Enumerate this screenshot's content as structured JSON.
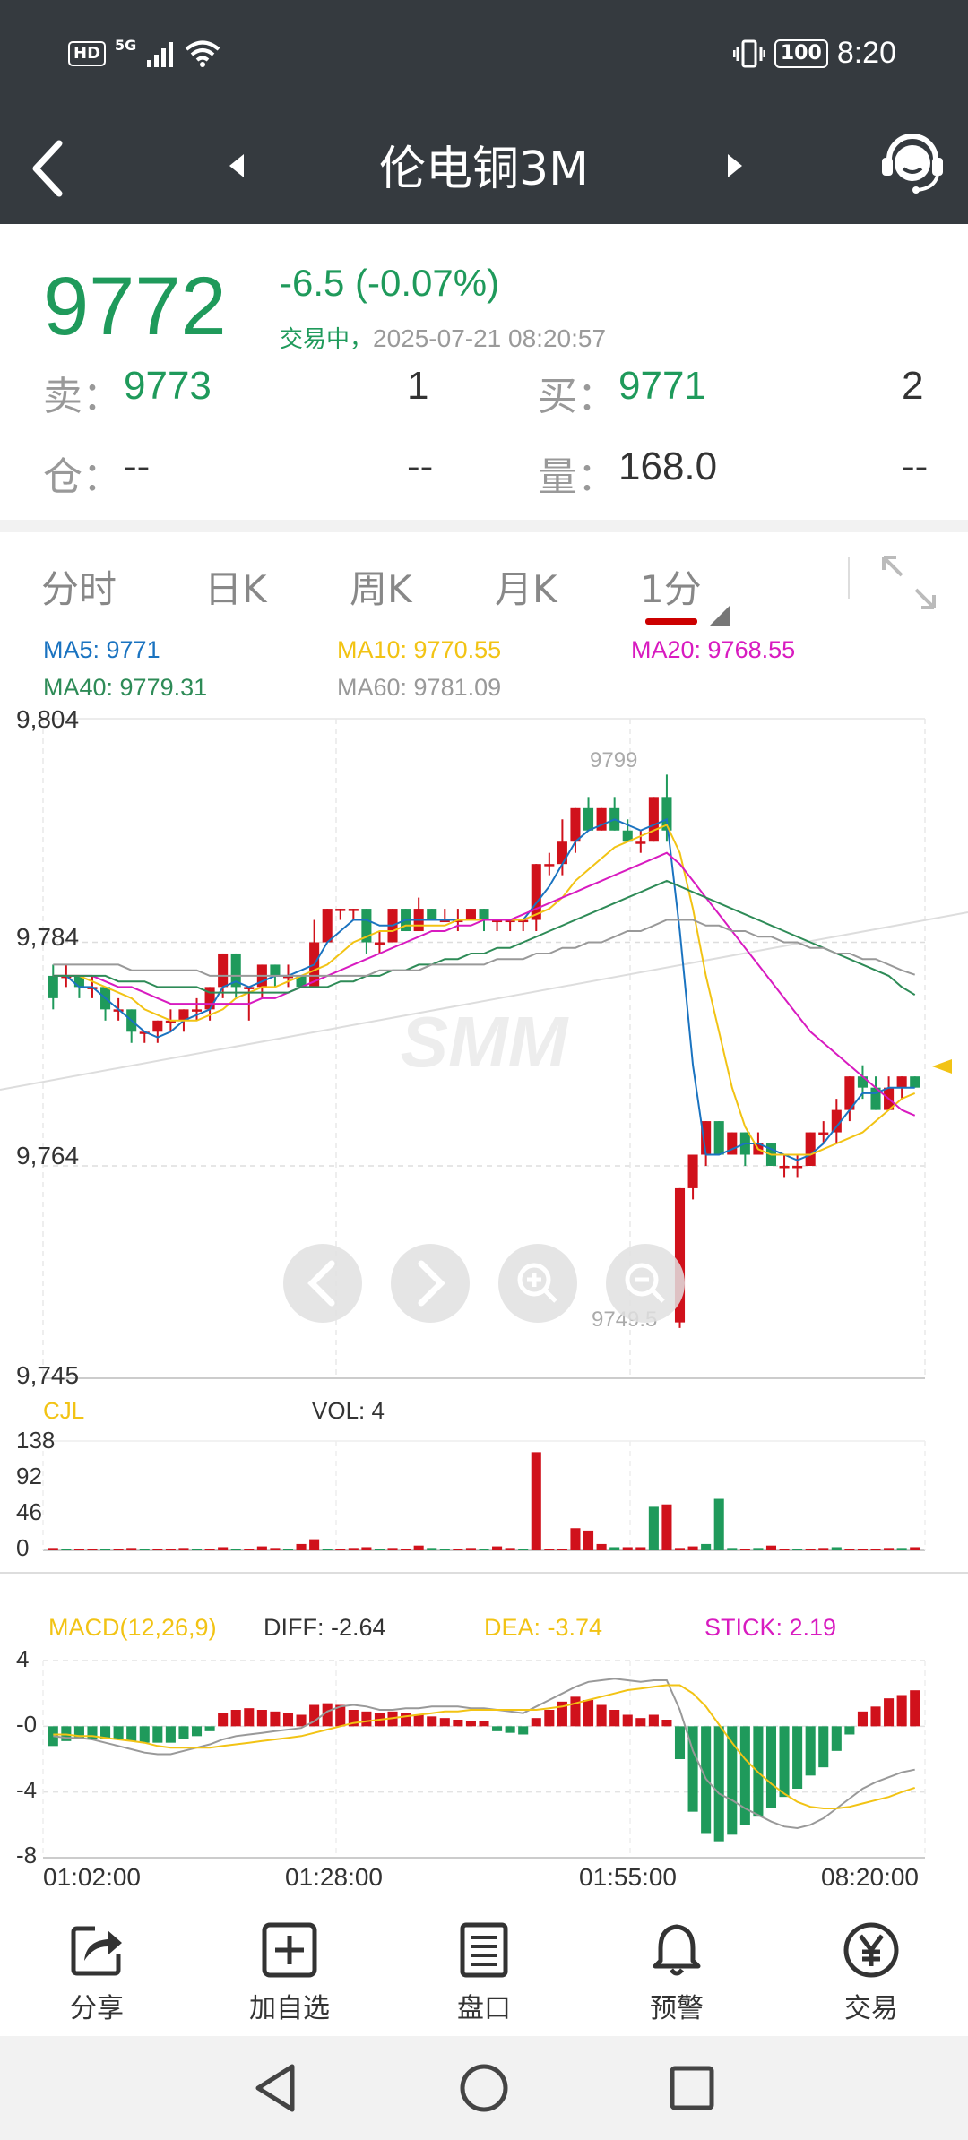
{
  "status_bar": {
    "hd": "HD",
    "network": "5G",
    "battery": "100",
    "time": "8:20"
  },
  "nav": {
    "title": "伦电铜3M",
    "icons": [
      "back-arrow-icon",
      "prev-triangle-icon",
      "next-triangle-icon",
      "customer-service-icon"
    ]
  },
  "quote": {
    "price": "9772",
    "change": "-6.5",
    "change_pct": "(-0.07%)",
    "status": "交易中，",
    "datetime": "2025-07-21 08:20:57",
    "sell_label": "卖：",
    "sell_price": "9773",
    "sell_qty": "1",
    "buy_label": "买：",
    "buy_price": "9771",
    "buy_qty": "2",
    "oi_label": "仓：",
    "oi_value": "--",
    "oi_change": "--",
    "vol_label": "量：",
    "vol_value": "168.0",
    "vol_change": "--"
  },
  "tabs": {
    "items": [
      "分时",
      "日K",
      "周K",
      "月K",
      "1分"
    ],
    "active": "1分"
  },
  "ma_legend": {
    "ma5": "MA5: 9771",
    "ma10": "MA10: 9770.55",
    "ma20": "MA20: 9768.55",
    "ma40": "MA40: 9779.31",
    "ma60": "MA60: 9781.09"
  },
  "colors": {
    "up": "#d0111b",
    "down": "#1f9a5b",
    "ma5": "#1a73c0",
    "ma10": "#f2c314",
    "ma20": "#d81bc0",
    "ma40": "#2e8b57",
    "ma60": "#999999",
    "header_bg": "#353a3f"
  },
  "chart_data": [
    {
      "type": "candlestick",
      "y_ticks": [
        "9,804",
        "9,784",
        "9,764",
        "9,745"
      ],
      "ylim": [
        9745,
        9804
      ],
      "high_label": "9799",
      "low_label": "9749.5",
      "watermark": "SMM",
      "candles": [
        {
          "o": 9781,
          "c": 9779,
          "h": 9782,
          "l": 9778
        },
        {
          "o": 9781,
          "c": 9781,
          "h": 9782,
          "l": 9780
        },
        {
          "o": 9781,
          "c": 9780,
          "h": 9781,
          "l": 9779
        },
        {
          "o": 9780,
          "c": 9780,
          "h": 9781,
          "l": 9779
        },
        {
          "o": 9780,
          "c": 9778,
          "h": 9780,
          "l": 9777
        },
        {
          "o": 9778,
          "c": 9778,
          "h": 9779,
          "l": 9777
        },
        {
          "o": 9778,
          "c": 9776,
          "h": 9778,
          "l": 9775
        },
        {
          "o": 9776,
          "c": 9776,
          "h": 9776,
          "l": 9775
        },
        {
          "o": 9776,
          "c": 9777,
          "h": 9777,
          "l": 9775
        },
        {
          "o": 9777,
          "c": 9777,
          "h": 9778,
          "l": 9776
        },
        {
          "o": 9777,
          "c": 9778,
          "h": 9778,
          "l": 9776
        },
        {
          "o": 9778,
          "c": 9778,
          "h": 9779,
          "l": 9777
        },
        {
          "o": 9778,
          "c": 9780,
          "h": 9780,
          "l": 9777
        },
        {
          "o": 9780,
          "c": 9783,
          "h": 9783,
          "l": 9779
        },
        {
          "o": 9783,
          "c": 9780,
          "h": 9783,
          "l": 9779
        },
        {
          "o": 9780,
          "c": 9780,
          "h": 9780,
          "l": 9777
        },
        {
          "o": 9780,
          "c": 9782,
          "h": 9782,
          "l": 9779
        },
        {
          "o": 9782,
          "c": 9781,
          "h": 9782,
          "l": 9780
        },
        {
          "o": 9781,
          "c": 9781,
          "h": 9782,
          "l": 9780
        },
        {
          "o": 9781,
          "c": 9780,
          "h": 9781,
          "l": 9780
        },
        {
          "o": 9780,
          "c": 9784,
          "h": 9786,
          "l": 9780
        },
        {
          "o": 9784,
          "c": 9787,
          "h": 9787,
          "l": 9784
        },
        {
          "o": 9787,
          "c": 9787,
          "h": 9787,
          "l": 9786
        },
        {
          "o": 9787,
          "c": 9787,
          "h": 9787,
          "l": 9786
        },
        {
          "o": 9787,
          "c": 9784,
          "h": 9787,
          "l": 9783
        },
        {
          "o": 9784,
          "c": 9784,
          "h": 9785,
          "l": 9783
        },
        {
          "o": 9784,
          "c": 9787,
          "h": 9787,
          "l": 9784
        },
        {
          "o": 9787,
          "c": 9785,
          "h": 9787,
          "l": 9785
        },
        {
          "o": 9785,
          "c": 9787,
          "h": 9788,
          "l": 9785
        },
        {
          "o": 9787,
          "c": 9786,
          "h": 9787,
          "l": 9786
        },
        {
          "o": 9786,
          "c": 9786,
          "h": 9787,
          "l": 9786
        },
        {
          "o": 9786,
          "c": 9786,
          "h": 9787,
          "l": 9785
        },
        {
          "o": 9786,
          "c": 9787,
          "h": 9787,
          "l": 9786
        },
        {
          "o": 9787,
          "c": 9786,
          "h": 9787,
          "l": 9785
        },
        {
          "o": 9786,
          "c": 9786,
          "h": 9786,
          "l": 9785
        },
        {
          "o": 9786,
          "c": 9786,
          "h": 9786,
          "l": 9785
        },
        {
          "o": 9786,
          "c": 9786,
          "h": 9786,
          "l": 9785
        },
        {
          "o": 9786,
          "c": 9791,
          "h": 9791,
          "l": 9785
        },
        {
          "o": 9791,
          "c": 9791,
          "h": 9792,
          "l": 9790
        },
        {
          "o": 9791,
          "c": 9793,
          "h": 9795,
          "l": 9790
        },
        {
          "o": 9793,
          "c": 9796,
          "h": 9796,
          "l": 9792
        },
        {
          "o": 9796,
          "c": 9794,
          "h": 9797,
          "l": 9794
        },
        {
          "o": 9794,
          "c": 9796,
          "h": 9796,
          "l": 9794
        },
        {
          "o": 9796,
          "c": 9794,
          "h": 9797,
          "l": 9794
        },
        {
          "o": 9794,
          "c": 9793,
          "h": 9795,
          "l": 9793
        },
        {
          "o": 9793,
          "c": 9793,
          "h": 9794,
          "l": 9792
        },
        {
          "o": 9793,
          "c": 9797,
          "h": 9797,
          "l": 9793
        },
        {
          "o": 9797,
          "c": 9794,
          "h": 9799,
          "l": 9793
        },
        {
          "o": 9750,
          "c": 9762,
          "h": 9762,
          "l": 9749.5
        },
        {
          "o": 9762,
          "c": 9765,
          "h": 9765,
          "l": 9761
        },
        {
          "o": 9765,
          "c": 9768,
          "h": 9768,
          "l": 9764
        },
        {
          "o": 9768,
          "c": 9765,
          "h": 9768,
          "l": 9765
        },
        {
          "o": 9765,
          "c": 9767,
          "h": 9767,
          "l": 9765
        },
        {
          "o": 9767,
          "c": 9765,
          "h": 9767,
          "l": 9764
        },
        {
          "o": 9765,
          "c": 9766,
          "h": 9767,
          "l": 9765
        },
        {
          "o": 9766,
          "c": 9764,
          "h": 9766,
          "l": 9764
        },
        {
          "o": 9764,
          "c": 9764,
          "h": 9765,
          "l": 9763
        },
        {
          "o": 9764,
          "c": 9764,
          "h": 9765,
          "l": 9763
        },
        {
          "o": 9764,
          "c": 9767,
          "h": 9767,
          "l": 9764
        },
        {
          "o": 9767,
          "c": 9767,
          "h": 9768,
          "l": 9766
        },
        {
          "o": 9767,
          "c": 9769,
          "h": 9770,
          "l": 9766
        },
        {
          "o": 9769,
          "c": 9772,
          "h": 9772,
          "l": 9768
        },
        {
          "o": 9772,
          "c": 9771,
          "h": 9773,
          "l": 9770
        },
        {
          "o": 9771,
          "c": 9769,
          "h": 9772,
          "l": 9769
        },
        {
          "o": 9769,
          "c": 9771,
          "h": 9772,
          "l": 9769
        },
        {
          "o": 9771,
          "c": 9772,
          "h": 9772,
          "l": 9770
        },
        {
          "o": 9772,
          "c": 9771,
          "h": 9772,
          "l": 9771
        }
      ],
      "ma_lines": {
        "ma5": [
          9781,
          9781,
          9780,
          9780,
          9779,
          9778,
          9777,
          9776,
          9775.5,
          9776,
          9777,
          9777.5,
          9778,
          9780,
          9780.5,
          9780,
          9780.5,
          9781,
          9781,
          9781.5,
          9782,
          9784,
          9785,
          9786,
          9786,
          9785.5,
          9785.5,
          9786,
          9786,
          9786,
          9786,
          9786,
          9786,
          9786,
          9786,
          9786,
          9786,
          9787.5,
          9789,
          9791,
          9793,
          9794,
          9794.5,
          9795,
          9794.5,
          9794,
          9794.5,
          9795,
          9785,
          9773,
          9765,
          9765,
          9765.5,
          9766,
          9766,
          9765.5,
          9765,
          9764.5,
          9765,
          9766,
          9767.5,
          9769,
          9770.5,
          9770.5,
          9771,
          9771,
          9771
        ],
        "ma10": [
          9781,
          9781,
          9781,
          9780.5,
          9780,
          9779.5,
          9779,
          9778,
          9777.5,
          9777,
          9777,
          9777,
          9777.5,
          9778,
          9779,
          9779.5,
          9780,
          9780,
          9780.5,
          9781,
          9781.5,
          9782,
          9783,
          9784,
          9784.5,
          9785,
          9785,
          9785.5,
          9785.5,
          9785.5,
          9785.5,
          9786,
          9786,
          9786,
          9786,
          9786,
          9786,
          9786.5,
          9787,
          9788,
          9789.5,
          9790.5,
          9791.5,
          9792.5,
          9793,
          9793.5,
          9794,
          9794.5,
          9792,
          9787,
          9781,
          9776,
          9771,
          9767.5,
          9765.5,
          9765,
          9765,
          9765,
          9765,
          9765.5,
          9766,
          9766.5,
          9767,
          9768,
          9769,
          9770,
          9770.5
        ],
        "ma20": [
          9781,
          9781,
          9781,
          9781,
          9780.5,
          9780,
          9780,
          9779.5,
          9779,
          9778.5,
          9778.5,
          9778.5,
          9778.5,
          9778.5,
          9778.5,
          9778.5,
          9779,
          9779,
          9779.5,
          9780,
          9780.5,
          9781,
          9781.5,
          9782,
          9782.5,
          9783,
          9783.5,
          9784,
          9784.5,
          9785,
          9785,
          9785.5,
          9785.5,
          9786,
          9786,
          9786,
          9786.5,
          9787,
          9787.5,
          9788,
          9788.5,
          9789,
          9789.5,
          9790,
          9790.5,
          9791,
          9791.5,
          9792,
          9791,
          9789.5,
          9788,
          9786.5,
          9785,
          9783.5,
          9782,
          9780.5,
          9779,
          9777.5,
          9776,
          9775,
          9774,
          9773,
          9772,
          9771,
          9770,
          9769,
          9768.5
        ],
        "ma40": [
          9781,
          9781,
          9781,
          9781,
          9781,
          9780.5,
          9780.5,
          9780.5,
          9780,
          9780,
          9780,
          9780,
          9779.5,
          9779.5,
          9779.5,
          9779.5,
          9779.5,
          9779.5,
          9779.5,
          9780,
          9780,
          9780,
          9780.5,
          9780.5,
          9781,
          9781,
          9781.5,
          9781.5,
          9782,
          9782,
          9782.5,
          9782.5,
          9783,
          9783,
          9783.5,
          9783.5,
          9784,
          9784.5,
          9785,
          9785.5,
          9786,
          9786.5,
          9787,
          9787.5,
          9788,
          9788.5,
          9789,
          9789.5,
          9789,
          9788.5,
          9788,
          9787.5,
          9787,
          9786.5,
          9786,
          9785.5,
          9785,
          9784.5,
          9784,
          9783.5,
          9783,
          9782.5,
          9782,
          9781.5,
          9781,
          9780,
          9779.3
        ],
        "ma60": [
          9782,
          9782,
          9782,
          9782,
          9782,
          9782,
          9781.5,
          9781.5,
          9781.5,
          9781.5,
          9781.5,
          9781.5,
          9781,
          9781,
          9781,
          9781,
          9781,
          9781,
          9781,
          9781,
          9781,
          9781,
          9781,
          9781,
          9781,
          9781.5,
          9781.5,
          9781.5,
          9781.5,
          9782,
          9782,
          9782,
          9782,
          9782,
          9782.5,
          9782.5,
          9782.5,
          9783,
          9783,
          9783.5,
          9783.5,
          9784,
          9784,
          9784.5,
          9785,
          9785,
          9785.5,
          9786,
          9786,
          9786,
          9785.5,
          9785.5,
          9785,
          9785,
          9784.5,
          9784.5,
          9784,
          9784,
          9783.5,
          9783.5,
          9783,
          9783,
          9782.5,
          9782.5,
          9782,
          9781.5,
          9781.1
        ]
      }
    },
    {
      "type": "bar",
      "label": "CJL",
      "vol_label": "VOL: 4",
      "y_ticks": [
        "138",
        "92",
        "46",
        "0"
      ],
      "ylim": [
        0,
        138
      ],
      "values": [
        3,
        2,
        2,
        1,
        2,
        2,
        3,
        2,
        1,
        2,
        3,
        2,
        2,
        4,
        2,
        2,
        5,
        3,
        2,
        8,
        14,
        2,
        2,
        3,
        4,
        2,
        3,
        2,
        6,
        3,
        2,
        2,
        3,
        2,
        5,
        3,
        2,
        124,
        2,
        2,
        28,
        25,
        8,
        4,
        4,
        4,
        55,
        58,
        3,
        5,
        8,
        65,
        3,
        2,
        3,
        6,
        2,
        2,
        2,
        3,
        4,
        2,
        2,
        2,
        3,
        3,
        4
      ],
      "up": [
        true,
        false,
        true,
        true,
        false,
        true,
        true,
        false,
        true,
        true,
        true,
        false,
        true,
        true,
        false,
        true,
        true,
        true,
        false,
        true,
        true,
        false,
        true,
        true,
        true,
        false,
        true,
        true,
        true,
        false,
        false,
        true,
        true,
        false,
        true,
        true,
        false,
        true,
        true,
        true,
        true,
        true,
        true,
        false,
        true,
        true,
        false,
        true,
        true,
        true,
        false,
        false,
        false,
        true,
        false,
        true,
        true,
        false,
        true,
        true,
        false,
        true,
        true,
        true,
        true,
        false,
        true
      ]
    },
    {
      "type": "bar",
      "label": "MACD(12,26,9)",
      "diff_label": "DIFF: -2.64",
      "dea_label": "DEA: -3.74",
      "stick_label": "STICK: 2.19",
      "y_ticks": [
        "4",
        "-0",
        "-4",
        "-8"
      ],
      "ylim": [
        -8,
        4
      ],
      "x_ticks": [
        "01:02:00",
        "01:28:00",
        "01:55:00",
        "08:20:00"
      ],
      "stick": [
        -1.2,
        -0.9,
        -0.8,
        -0.8,
        -0.8,
        -0.8,
        -0.9,
        -1,
        -1,
        -1,
        -0.8,
        -0.6,
        -0.3,
        0.8,
        1,
        1.1,
        1,
        0.9,
        0.8,
        0.7,
        1.3,
        1.4,
        1.3,
        1,
        0.9,
        0.8,
        0.9,
        0.8,
        0.7,
        0.6,
        0.5,
        0.4,
        0.3,
        0.3,
        -0.3,
        -0.4,
        -0.5,
        0.5,
        1,
        1.5,
        1.8,
        1.6,
        1.3,
        1,
        0.7,
        0.5,
        0.7,
        0.4,
        -2,
        -5.2,
        -6.5,
        -7,
        -6.6,
        -6,
        -5.5,
        -5,
        -4.3,
        -3.8,
        -3,
        -2.5,
        -1.5,
        -0.5,
        0.9,
        1.2,
        1.7,
        1.9,
        2.19
      ],
      "diff": [
        -0.6,
        -0.7,
        -0.7,
        -0.8,
        -1,
        -1.2,
        -1.4,
        -1.6,
        -1.7,
        -1.7,
        -1.5,
        -1.3,
        -1.1,
        -0.8,
        -0.6,
        -0.5,
        -0.4,
        -0.3,
        -0.2,
        -0.1,
        0.3,
        0.9,
        1.2,
        1.3,
        1.2,
        1,
        1,
        1.1,
        1.1,
        1.2,
        1.2,
        1.2,
        1.1,
        1.1,
        1,
        0.9,
        0.8,
        1.2,
        1.6,
        2,
        2.4,
        2.7,
        2.8,
        2.9,
        2.8,
        2.7,
        2.8,
        2.8,
        1,
        -1.5,
        -3.2,
        -4.1,
        -4.5,
        -5,
        -5.4,
        -5.8,
        -6.1,
        -6.2,
        -6,
        -5.6,
        -5,
        -4.4,
        -3.8,
        -3.4,
        -3.1,
        -2.8,
        -2.64
      ],
      "dea": [
        -0.5,
        -0.5,
        -0.6,
        -0.6,
        -0.7,
        -0.8,
        -0.9,
        -1,
        -1.2,
        -1.3,
        -1.3,
        -1.3,
        -1.3,
        -1.2,
        -1.1,
        -1,
        -0.9,
        -0.8,
        -0.7,
        -0.6,
        -0.4,
        -0.2,
        0,
        0.2,
        0.3,
        0.4,
        0.5,
        0.6,
        0.7,
        0.8,
        0.9,
        0.9,
        1,
        1,
        1,
        1,
        1,
        1,
        1.1,
        1.2,
        1.4,
        1.6,
        1.8,
        2,
        2.2,
        2.3,
        2.4,
        2.5,
        2.5,
        2,
        1.2,
        0.1,
        -1,
        -2,
        -2.8,
        -3.5,
        -4.1,
        -4.6,
        -4.9,
        -5,
        -5,
        -4.9,
        -4.7,
        -4.5,
        -4.3,
        -4,
        -3.74
      ]
    }
  ],
  "zoom_controls": [
    "prev-icon",
    "next-icon",
    "zoom-in-icon",
    "zoom-out-icon"
  ],
  "toolbar": {
    "items": [
      {
        "label": "分享",
        "icon": "share-icon"
      },
      {
        "label": "加自选",
        "icon": "add-watchlist-icon"
      },
      {
        "label": "盘口",
        "icon": "order-book-icon"
      },
      {
        "label": "预警",
        "icon": "bell-icon"
      },
      {
        "label": "交易",
        "icon": "yuan-icon"
      }
    ]
  }
}
